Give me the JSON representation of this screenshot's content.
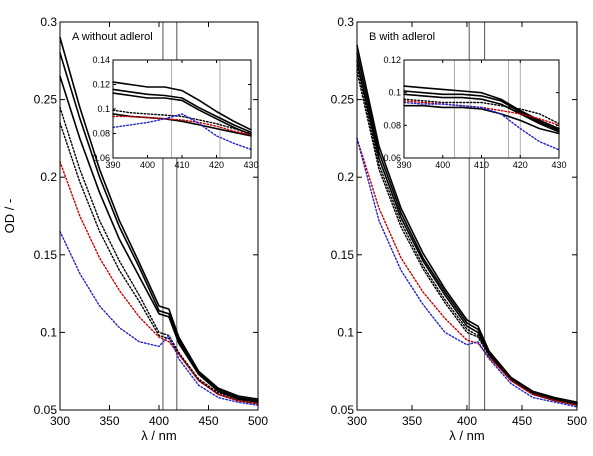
{
  "chart_data": [
    {
      "type": "line",
      "panel_label": "A   without adlerol",
      "ylabel": "OD / -",
      "xlabel": "λ / nm",
      "xlim": [
        300,
        500
      ],
      "ylim": [
        0.05,
        0.3
      ],
      "xticks": [
        "300",
        "350",
        "400",
        "450",
        "500"
      ],
      "yticks": [
        "0.05",
        "0.1",
        "0.15",
        "0.2",
        "0.25",
        "0.3"
      ],
      "vlines": [
        404,
        418
      ],
      "x": [
        300,
        320,
        340,
        360,
        380,
        400,
        410,
        420,
        440,
        460,
        480,
        500
      ],
      "series": [
        {
          "color": "#000000",
          "style": "solid",
          "values": [
            0.29,
            0.245,
            0.205,
            0.172,
            0.145,
            0.117,
            0.115,
            0.097,
            0.075,
            0.064,
            0.059,
            0.057
          ]
        },
        {
          "color": "#000000",
          "style": "solid",
          "values": [
            0.28,
            0.238,
            0.2,
            0.168,
            0.142,
            0.114,
            0.112,
            0.095,
            0.074,
            0.063,
            0.058,
            0.056
          ]
        },
        {
          "color": "#000000",
          "style": "solid",
          "values": [
            0.265,
            0.225,
            0.19,
            0.16,
            0.136,
            0.112,
            0.11,
            0.093,
            0.073,
            0.062,
            0.057,
            0.055
          ]
        },
        {
          "color": "#000000",
          "style": "dotted",
          "values": [
            0.245,
            0.205,
            0.172,
            0.146,
            0.124,
            0.1,
            0.098,
            0.087,
            0.07,
            0.061,
            0.057,
            0.055
          ]
        },
        {
          "color": "#000000",
          "style": "dotted",
          "values": [
            0.235,
            0.197,
            0.165,
            0.14,
            0.12,
            0.098,
            0.096,
            0.086,
            0.069,
            0.06,
            0.056,
            0.054
          ]
        },
        {
          "color": "#cc0000",
          "style": "dotted",
          "values": [
            0.21,
            0.175,
            0.148,
            0.127,
            0.11,
            0.097,
            0.094,
            0.086,
            0.069,
            0.06,
            0.056,
            0.054
          ]
        },
        {
          "color": "#2222cc",
          "style": "dotted",
          "values": [
            0.165,
            0.138,
            0.117,
            0.103,
            0.094,
            0.091,
            0.098,
            0.083,
            0.066,
            0.058,
            0.055,
            0.053
          ]
        }
      ],
      "inset": {
        "xlim": [
          390,
          430
        ],
        "ylim": [
          0.06,
          0.14
        ],
        "xticks": [
          "390",
          "400",
          "410",
          "420",
          "430"
        ],
        "yticks": [
          "0.06",
          "0.08",
          "0.1",
          "0.12",
          "0.14"
        ],
        "vlines": [
          407,
          421
        ],
        "x": [
          390,
          395,
          400,
          405,
          410,
          415,
          420,
          425,
          430
        ],
        "series": [
          {
            "color": "#000000",
            "style": "solid",
            "values": [
              0.122,
              0.12,
              0.118,
              0.118,
              0.115,
              0.107,
              0.098,
              0.09,
              0.083
            ]
          },
          {
            "color": "#000000",
            "style": "solid",
            "values": [
              0.116,
              0.114,
              0.112,
              0.111,
              0.109,
              0.101,
              0.094,
              0.087,
              0.081
            ]
          },
          {
            "color": "#000000",
            "style": "solid",
            "values": [
              0.113,
              0.111,
              0.109,
              0.109,
              0.107,
              0.099,
              0.092,
              0.085,
              0.079
            ]
          },
          {
            "color": "#000000",
            "style": "dotted",
            "values": [
              0.099,
              0.097,
              0.096,
              0.095,
              0.094,
              0.091,
              0.088,
              0.084,
              0.08
            ]
          },
          {
            "color": "#000000",
            "style": "solid",
            "values": [
              0.096,
              0.094,
              0.093,
              0.092,
              0.09,
              0.087,
              0.084,
              0.081,
              0.078
            ]
          },
          {
            "color": "#cc0000",
            "style": "dotted",
            "values": [
              0.094,
              0.094,
              0.093,
              0.092,
              0.091,
              0.089,
              0.086,
              0.082,
              0.079
            ]
          },
          {
            "color": "#2222cc",
            "style": "dotted",
            "values": [
              0.085,
              0.087,
              0.089,
              0.092,
              0.096,
              0.088,
              0.078,
              0.072,
              0.067
            ]
          }
        ]
      }
    },
    {
      "type": "line",
      "panel_label": "B   with adlerol",
      "ylabel": "",
      "xlabel": "λ / nm",
      "xlim": [
        300,
        500
      ],
      "ylim": [
        0.05,
        0.3
      ],
      "xticks": [
        "300",
        "350",
        "400",
        "450",
        "500"
      ],
      "yticks": [
        "0.05",
        "0.1",
        "0.15",
        "0.2",
        "0.25",
        "0.3"
      ],
      "vlines": [
        402,
        416
      ],
      "x": [
        300,
        320,
        340,
        360,
        380,
        400,
        410,
        420,
        440,
        460,
        480,
        500
      ],
      "series": [
        {
          "color": "#000000",
          "style": "solid",
          "values": [
            0.285,
            0.22,
            0.18,
            0.151,
            0.128,
            0.108,
            0.104,
            0.088,
            0.071,
            0.062,
            0.058,
            0.055
          ]
        },
        {
          "color": "#000000",
          "style": "solid",
          "values": [
            0.28,
            0.216,
            0.177,
            0.148,
            0.126,
            0.106,
            0.102,
            0.087,
            0.07,
            0.061,
            0.057,
            0.054
          ]
        },
        {
          "color": "#000000",
          "style": "solid",
          "values": [
            0.275,
            0.212,
            0.174,
            0.146,
            0.124,
            0.104,
            0.1,
            0.086,
            0.07,
            0.061,
            0.057,
            0.054
          ]
        },
        {
          "color": "#000000",
          "style": "dotted",
          "values": [
            0.272,
            0.208,
            0.171,
            0.143,
            0.121,
            0.102,
            0.098,
            0.086,
            0.069,
            0.06,
            0.056,
            0.054
          ]
        },
        {
          "color": "#000000",
          "style": "dotted",
          "values": [
            0.268,
            0.205,
            0.168,
            0.141,
            0.119,
            0.1,
            0.097,
            0.085,
            0.069,
            0.06,
            0.056,
            0.053
          ]
        },
        {
          "color": "#cc0000",
          "style": "dotted",
          "values": [
            0.225,
            0.18,
            0.148,
            0.126,
            0.109,
            0.095,
            0.093,
            0.084,
            0.069,
            0.06,
            0.056,
            0.053
          ]
        },
        {
          "color": "#2222cc",
          "style": "dotted",
          "values": [
            0.225,
            0.172,
            0.14,
            0.118,
            0.1,
            0.092,
            0.094,
            0.083,
            0.067,
            0.058,
            0.055,
            0.052
          ]
        }
      ],
      "inset": {
        "xlim": [
          390,
          430
        ],
        "ylim": [
          0.06,
          0.12
        ],
        "xticks": [
          "390",
          "400",
          "410",
          "420",
          "430"
        ],
        "yticks": [
          "0.06",
          "0.08",
          "0.1",
          "0.12"
        ],
        "vlines": [
          403,
          407,
          417,
          420
        ],
        "x": [
          390,
          395,
          400,
          405,
          410,
          415,
          420,
          425,
          430
        ],
        "series": [
          {
            "color": "#000000",
            "style": "solid",
            "values": [
              0.104,
              0.103,
              0.102,
              0.101,
              0.1,
              0.096,
              0.089,
              0.083,
              0.078
            ]
          },
          {
            "color": "#000000",
            "style": "solid",
            "values": [
              0.101,
              0.1,
              0.099,
              0.099,
              0.098,
              0.095,
              0.088,
              0.082,
              0.077
            ]
          },
          {
            "color": "#000000",
            "style": "solid",
            "values": [
              0.099,
              0.098,
              0.097,
              0.097,
              0.096,
              0.093,
              0.087,
              0.081,
              0.076
            ]
          },
          {
            "color": "#000000",
            "style": "dotted",
            "values": [
              0.096,
              0.095,
              0.094,
              0.094,
              0.094,
              0.092,
              0.09,
              0.087,
              0.081
            ]
          },
          {
            "color": "#000000",
            "style": "solid",
            "values": [
              0.092,
              0.092,
              0.091,
              0.091,
              0.09,
              0.087,
              0.083,
              0.078,
              0.075
            ]
          },
          {
            "color": "#cc0000",
            "style": "dotted",
            "values": [
              0.095,
              0.094,
              0.093,
              0.092,
              0.091,
              0.089,
              0.087,
              0.084,
              0.08
            ]
          },
          {
            "color": "#2222cc",
            "style": "dotted",
            "values": [
              0.094,
              0.093,
              0.093,
              0.092,
              0.091,
              0.087,
              0.078,
              0.07,
              0.065
            ]
          }
        ]
      }
    }
  ]
}
